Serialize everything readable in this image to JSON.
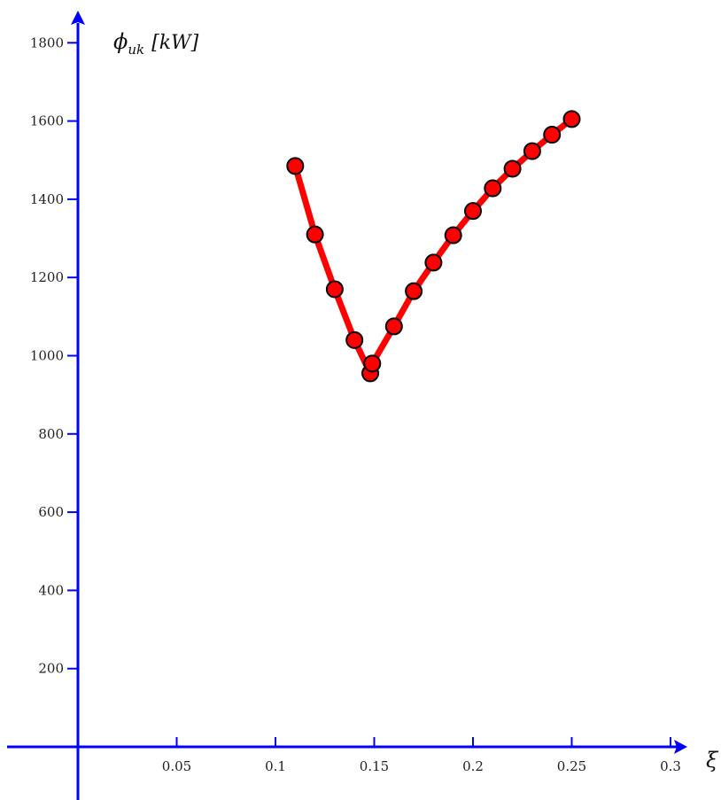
{
  "chart_data": {
    "type": "line",
    "title": "",
    "xlabel": "ξ",
    "ylabel": {
      "symbol": "ϕ",
      "subscript": "uk",
      "unit": "[kW]"
    },
    "xlim": [
      -0.04,
      0.31
    ],
    "ylim": [
      -150,
      1880
    ],
    "xticks": [
      0.05,
      0.1,
      0.15,
      0.2,
      0.25,
      0.3
    ],
    "xtick_labels": [
      "0.05",
      "0.1",
      "0.15",
      "0.2",
      "0.25",
      "0.3"
    ],
    "yticks": [
      200,
      400,
      600,
      800,
      1000,
      1200,
      1400,
      1600,
      1800
    ],
    "ytick_labels": [
      "200",
      "400",
      "600",
      "800",
      "1000",
      "1200",
      "1400",
      "1600",
      "1800"
    ],
    "grid": false,
    "colors": {
      "axis": "#0000ff",
      "line": "#ff0000",
      "marker_fill": "#ff0000",
      "marker_stroke": "#000000"
    },
    "series": [
      {
        "x": [
          0.11,
          0.12,
          0.13,
          0.14,
          0.148,
          0.149,
          0.16,
          0.17,
          0.18,
          0.19,
          0.2,
          0.21,
          0.22,
          0.23,
          0.24,
          0.25
        ],
        "y": [
          1485,
          1310,
          1170,
          1040,
          955,
          980,
          1075,
          1165,
          1238,
          1308,
          1370,
          1428,
          1478,
          1523,
          1565,
          1605
        ]
      }
    ]
  }
}
